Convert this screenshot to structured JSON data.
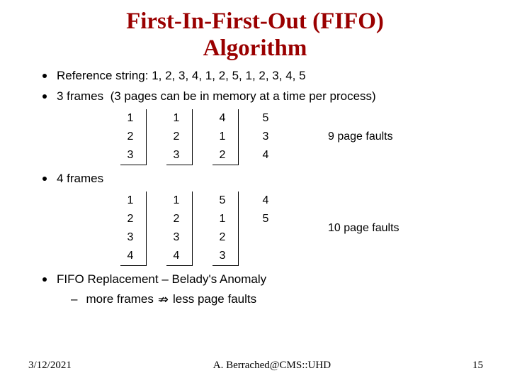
{
  "title_line1": "First-In-First-Out (FIFO)",
  "title_line2": "Algorithm",
  "bullets": {
    "ref_string_label": "Reference string:",
    "ref_string_value": "1, 2, 3, 4, 1, 2, 5, 1, 2, 3, 4, 5",
    "three_frames_label": "3 frames",
    "three_frames_note": "(3 pages can be in memory at a time per process)",
    "four_frames_label": "4 frames",
    "fifo_replacement": "FIFO Replacement – Belady's Anomaly",
    "anomaly_more": "more frames",
    "anomaly_less": "less page faults"
  },
  "three_frames": {
    "cols": [
      [
        "1",
        "2",
        "3"
      ],
      [
        "1",
        "2",
        "3"
      ],
      [
        "4",
        "1",
        "2"
      ],
      [
        "5",
        "3",
        "4"
      ]
    ],
    "boxed_cols": [
      0,
      1,
      2
    ],
    "faults_label": "9 page faults"
  },
  "four_frames": {
    "cols": [
      [
        "1",
        "2",
        "3",
        "4"
      ],
      [
        "1",
        "2",
        "3",
        "4"
      ],
      [
        "5",
        "1",
        "2",
        "3"
      ],
      [
        "4",
        "5"
      ]
    ],
    "boxed_cols": [
      0,
      1,
      2
    ],
    "faults_label": "10 page faults"
  },
  "footer": {
    "date": "3/12/2021",
    "author": "A. Berrached@CMS::UHD",
    "page": "15"
  },
  "colors": {
    "title": "#9a0000",
    "text": "#000000",
    "bg": "#ffffff"
  }
}
